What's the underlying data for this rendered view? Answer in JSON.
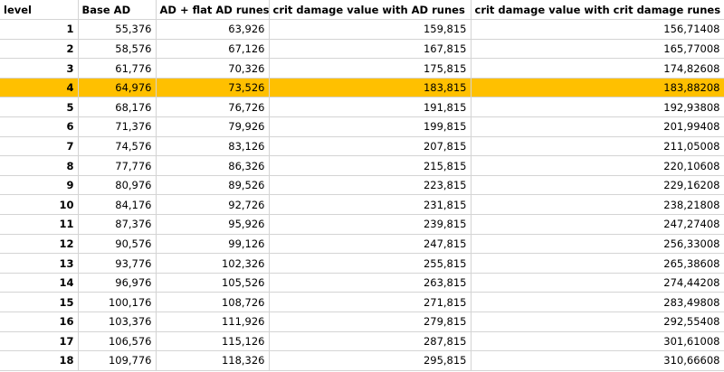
{
  "table": {
    "headers": [
      "level",
      "Base AD",
      "AD + flat AD runes",
      "crit damage value with AD runes",
      "crit damage value with crit damage runes"
    ],
    "highlight_color": "#ffc000",
    "highlighted_level": "4",
    "rows": [
      [
        "1",
        "55,376",
        "63,926",
        "159,815",
        "156,71408"
      ],
      [
        "2",
        "58,576",
        "67,126",
        "167,815",
        "165,77008"
      ],
      [
        "3",
        "61,776",
        "70,326",
        "175,815",
        "174,82608"
      ],
      [
        "4",
        "64,976",
        "73,526",
        "183,815",
        "183,88208"
      ],
      [
        "5",
        "68,176",
        "76,726",
        "191,815",
        "192,93808"
      ],
      [
        "6",
        "71,376",
        "79,926",
        "199,815",
        "201,99408"
      ],
      [
        "7",
        "74,576",
        "83,126",
        "207,815",
        "211,05008"
      ],
      [
        "8",
        "77,776",
        "86,326",
        "215,815",
        "220,10608"
      ],
      [
        "9",
        "80,976",
        "89,526",
        "223,815",
        "229,16208"
      ],
      [
        "10",
        "84,176",
        "92,726",
        "231,815",
        "238,21808"
      ],
      [
        "11",
        "87,376",
        "95,926",
        "239,815",
        "247,27408"
      ],
      [
        "12",
        "90,576",
        "99,126",
        "247,815",
        "256,33008"
      ],
      [
        "13",
        "93,776",
        "102,326",
        "255,815",
        "265,38608"
      ],
      [
        "14",
        "96,976",
        "105,526",
        "263,815",
        "274,44208"
      ],
      [
        "15",
        "100,176",
        "108,726",
        "271,815",
        "283,49808"
      ],
      [
        "16",
        "103,376",
        "111,926",
        "279,815",
        "292,55408"
      ],
      [
        "17",
        "106,576",
        "115,126",
        "287,815",
        "301,61008"
      ],
      [
        "18",
        "109,776",
        "118,326",
        "295,815",
        "310,66608"
      ]
    ]
  }
}
